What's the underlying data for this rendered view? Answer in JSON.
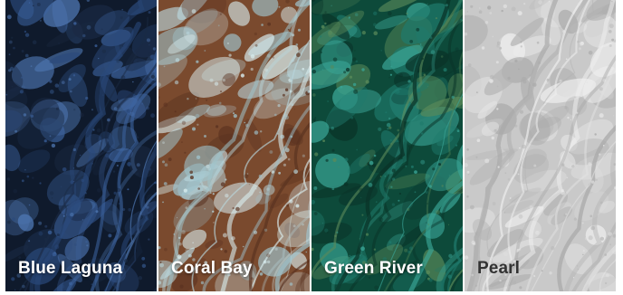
{
  "swatches": [
    {
      "name": "Blue Laguna",
      "label_color": "#ffffff",
      "texture": {
        "base": "#0f1a2c",
        "veins": [
          "#2b4a7c",
          "#3d64a0",
          "#1a2a44",
          "#4f78b4"
        ],
        "seed": 7,
        "contrast": "dark",
        "icon": "marble-texture"
      }
    },
    {
      "name": "Coral Bay",
      "label_color": "#ffffff",
      "texture": {
        "base": "#7a4a2e",
        "veins": [
          "#b9d6dc",
          "#d9eef0",
          "#5a3220",
          "#9fc3cc"
        ],
        "seed": 19,
        "contrast": "mixed",
        "icon": "marble-texture"
      }
    },
    {
      "name": "Green River",
      "label_color": "#ffffff",
      "texture": {
        "base": "#0d4a3a",
        "veins": [
          "#1f7a6c",
          "#3aa596",
          "#0a3328",
          "#5a8a5a"
        ],
        "seed": 31,
        "contrast": "dark",
        "icon": "marble-texture"
      }
    },
    {
      "name": "Pearl",
      "label_color": "#333333",
      "texture": {
        "base": "#c9c9c9",
        "veins": [
          "#e2e2e2",
          "#b4b4b4",
          "#efefef",
          "#a9a9a9"
        ],
        "seed": 47,
        "contrast": "light",
        "icon": "marble-texture"
      }
    }
  ]
}
